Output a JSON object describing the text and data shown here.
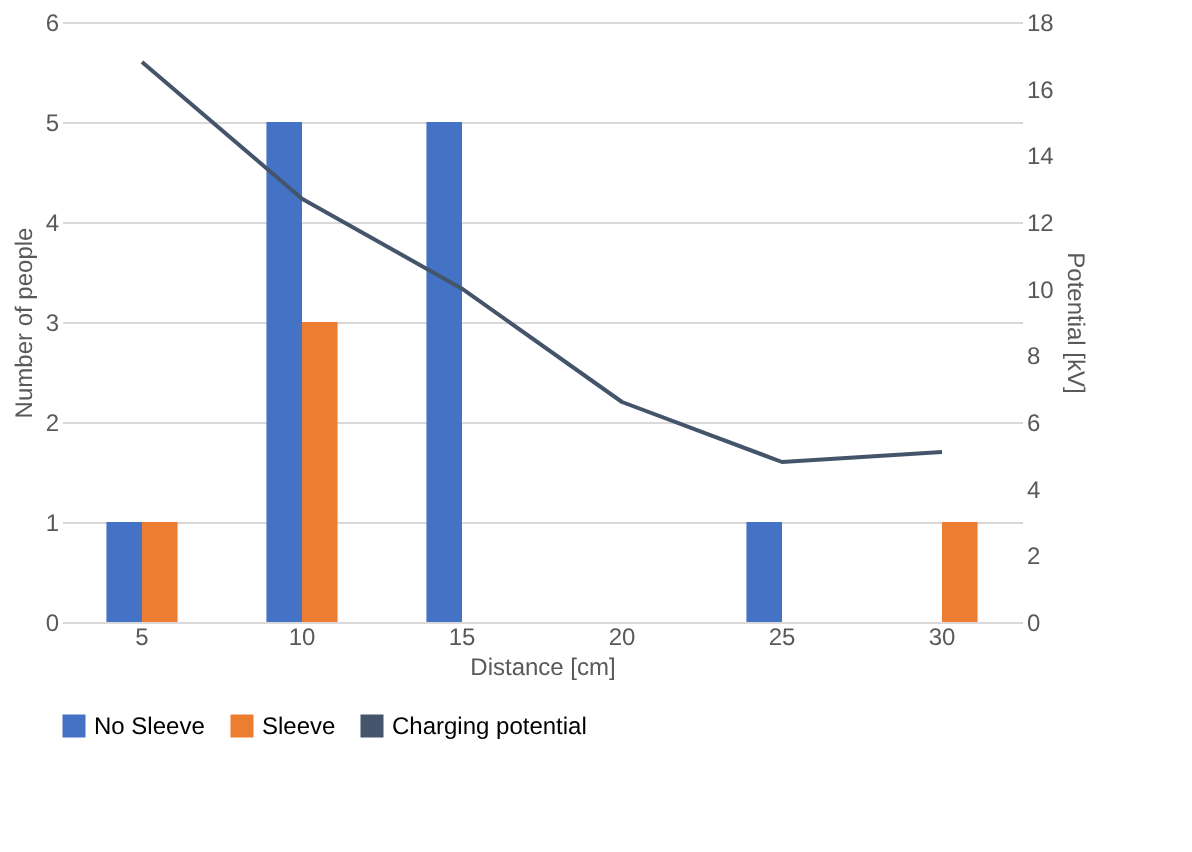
{
  "chart_data": {
    "type": "bar",
    "xlabel": "Distance [cm]",
    "ylabel": "Number of people",
    "y2label": "Potential [kV]",
    "categories": [
      "5",
      "10",
      "15",
      "20",
      "25",
      "30"
    ],
    "series": [
      {
        "name": "No Sleeve",
        "color": "#4472c4",
        "values": [
          1,
          5,
          5,
          0,
          1,
          0
        ]
      },
      {
        "name": "Sleeve",
        "color": "#ed7d31",
        "values": [
          1,
          3,
          0,
          0,
          0,
          1
        ]
      },
      {
        "name": "Charging potential",
        "type": "line",
        "axis": "y2",
        "color": "#44546a",
        "values": [
          16.8,
          12.7,
          10.0,
          6.6,
          4.8,
          5.1
        ]
      }
    ],
    "ylim": [
      0,
      6
    ],
    "yticks": [
      0,
      1,
      2,
      3,
      4,
      5,
      6
    ],
    "y2lim": [
      0,
      18
    ],
    "y2ticks": [
      0,
      2,
      4,
      6,
      8,
      10,
      12,
      14,
      16,
      18
    ],
    "grid": "y",
    "legend": "bottom",
    "marker": "none"
  }
}
